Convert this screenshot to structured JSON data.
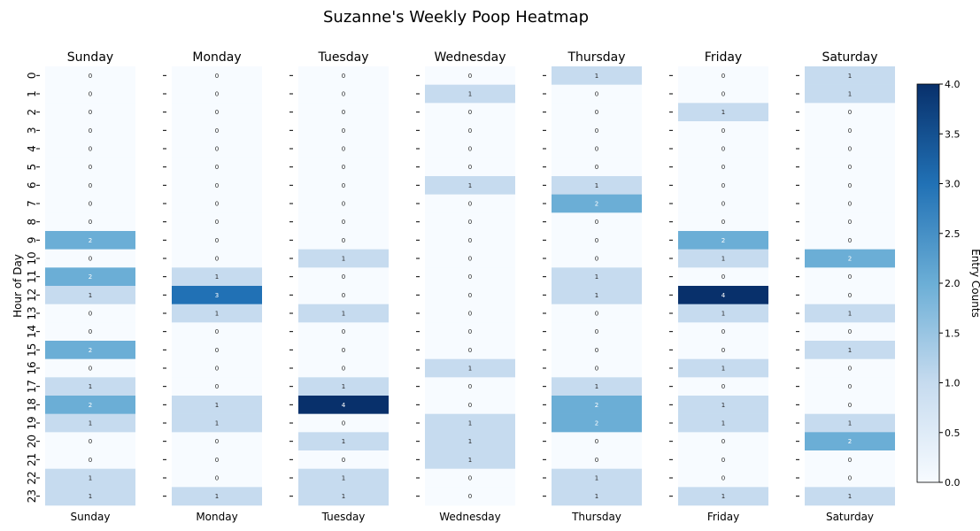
{
  "chart_data": {
    "type": "heatmap",
    "title": "Suzanne's Weekly Poop Heatmap",
    "ylabel": "Hour of Day",
    "colorbar_label": "Entry Counts",
    "days": [
      "Sunday",
      "Monday",
      "Tuesday",
      "Wednesday",
      "Thursday",
      "Friday",
      "Saturday"
    ],
    "hours": [
      "0",
      "1",
      "2",
      "3",
      "4",
      "5",
      "6",
      "7",
      "8",
      "9",
      "10",
      "11",
      "12",
      "13",
      "14",
      "15",
      "16",
      "17",
      "18",
      "19",
      "20",
      "21",
      "22",
      "23"
    ],
    "values": {
      "Sunday": [
        0,
        0,
        0,
        0,
        0,
        0,
        0,
        0,
        0,
        2,
        0,
        2,
        1,
        0,
        0,
        2,
        0,
        1,
        2,
        1,
        0,
        0,
        1,
        1
      ],
      "Monday": [
        0,
        0,
        0,
        0,
        0,
        0,
        0,
        0,
        0,
        0,
        0,
        1,
        3,
        1,
        0,
        0,
        0,
        0,
        1,
        1,
        0,
        0,
        0,
        1
      ],
      "Tuesday": [
        0,
        0,
        0,
        0,
        0,
        0,
        0,
        0,
        0,
        0,
        1,
        0,
        0,
        1,
        0,
        0,
        0,
        1,
        4,
        0,
        1,
        0,
        1,
        1
      ],
      "Wednesday": [
        0,
        1,
        0,
        0,
        0,
        0,
        1,
        0,
        0,
        0,
        0,
        0,
        0,
        0,
        0,
        0,
        1,
        0,
        0,
        1,
        1,
        1,
        0,
        0
      ],
      "Thursday": [
        1,
        0,
        0,
        0,
        0,
        0,
        1,
        2,
        0,
        0,
        0,
        1,
        1,
        0,
        0,
        0,
        0,
        1,
        2,
        2,
        0,
        0,
        1,
        1
      ],
      "Friday": [
        0,
        0,
        1,
        0,
        0,
        0,
        0,
        0,
        0,
        2,
        1,
        0,
        4,
        1,
        0,
        0,
        1,
        0,
        1,
        1,
        0,
        0,
        0,
        1
      ],
      "Saturday": [
        1,
        1,
        0,
        0,
        0,
        0,
        0,
        0,
        0,
        0,
        2,
        0,
        0,
        1,
        0,
        1,
        0,
        0,
        0,
        1,
        2,
        0,
        0,
        1
      ]
    },
    "vmin": 0,
    "vmax": 4,
    "colorbar_ticks": [
      "0.0",
      "0.5",
      "1.0",
      "1.5",
      "2.0",
      "2.5",
      "3.0",
      "3.5",
      "4.0"
    ],
    "colormap": [
      "#f7fbff",
      "#c6dbef",
      "#6baed6",
      "#2171b5",
      "#08306b"
    ],
    "grid": false
  }
}
